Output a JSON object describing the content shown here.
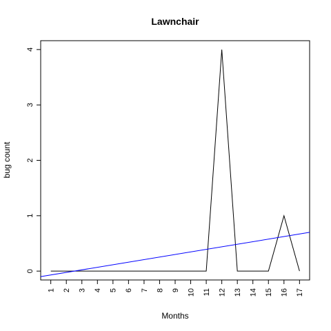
{
  "chart_data": {
    "type": "line",
    "title": "Lawnchair",
    "xlabel": "Months",
    "ylabel": "bug count",
    "categories": [
      "1",
      "2",
      "3",
      "4",
      "5",
      "6",
      "7",
      "8",
      "9",
      "10",
      "11",
      "12",
      "13",
      "14",
      "15",
      "16",
      "17"
    ],
    "x": [
      1,
      2,
      3,
      4,
      5,
      6,
      7,
      8,
      9,
      10,
      11,
      12,
      13,
      14,
      15,
      16,
      17
    ],
    "series": [
      {
        "values": [
          0,
          0,
          0,
          0,
          0,
          0,
          0,
          0,
          0,
          0,
          0,
          4,
          0,
          0,
          0,
          1,
          0
        ],
        "color": "#000000"
      }
    ],
    "trend_line": {
      "color": "#0000ff",
      "y_at_x_min": -0.1,
      "y_at_x_max": 0.7,
      "x_min": 0.35,
      "x_max": 17.65
    },
    "xlim": [
      0.35,
      17.65
    ],
    "ylim": [
      -0.16,
      4.16
    ],
    "yticks": [
      0,
      1,
      2,
      3,
      4
    ],
    "grid": false,
    "legend": "none"
  }
}
